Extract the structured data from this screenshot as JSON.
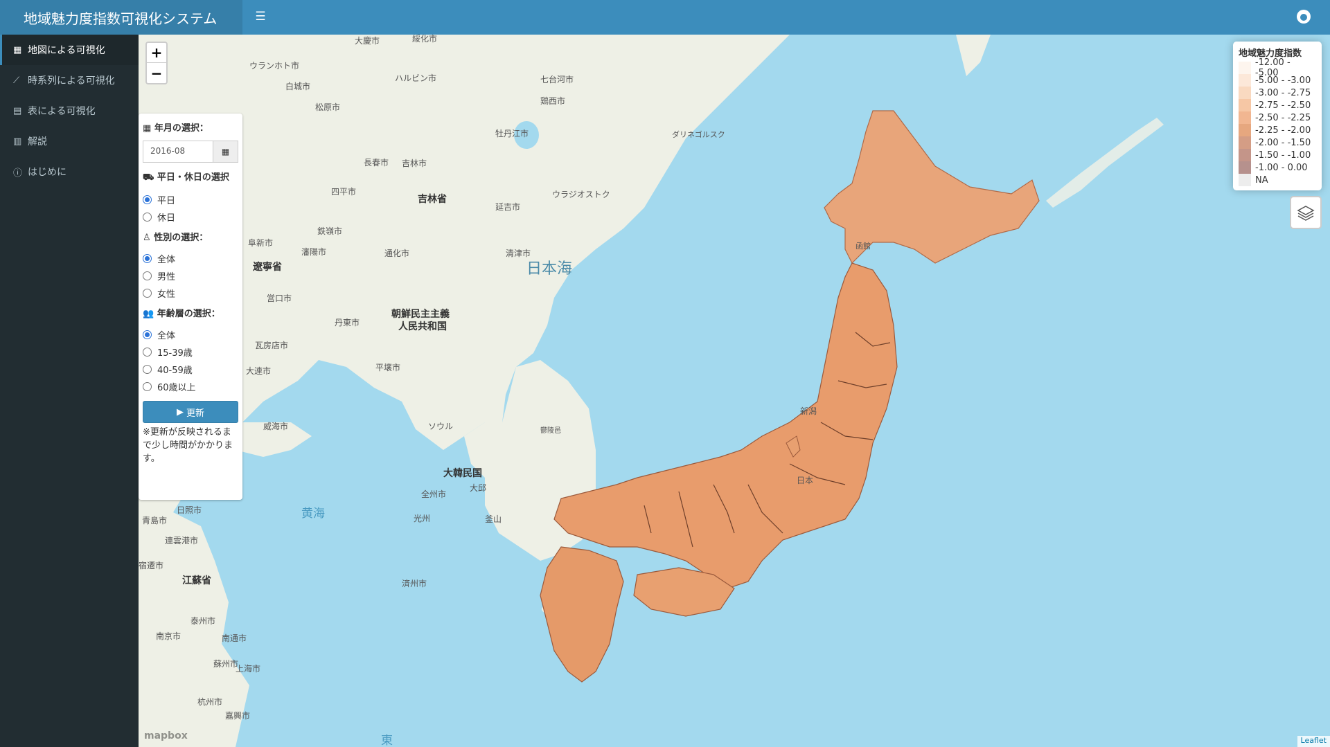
{
  "header": {
    "title": "地域魅力度指数可視化システム"
  },
  "sidebar": {
    "items": [
      {
        "label": "地図による可視化",
        "icon": "map-icon",
        "active": true
      },
      {
        "label": "時系列による可視化",
        "icon": "line-chart-icon",
        "active": false
      },
      {
        "label": "表による可視化",
        "icon": "table-icon",
        "active": false
      },
      {
        "label": "解説",
        "icon": "book-icon",
        "active": false
      },
      {
        "label": "はじめに",
        "icon": "info-icon",
        "active": false
      }
    ]
  },
  "zoom": {
    "in": "+",
    "out": "−"
  },
  "panel": {
    "date_label": "年月の選択：",
    "date_value": "2016-08",
    "daytype_label": "平日・休日の選択",
    "daytype_options": [
      "平日",
      "休日"
    ],
    "gender_label": "性別の選択：",
    "gender_options": [
      "全体",
      "男性",
      "女性"
    ],
    "age_label": "年齢層の選択：",
    "age_options": [
      "全体",
      "15-39歳",
      "40-59歳",
      "60歳以上"
    ],
    "update_button": "更新",
    "note": "※更新が反映されるまで少し時間がかかります。"
  },
  "legend": {
    "title": "地域魅力度指数",
    "entries": [
      {
        "label": "-12.00 - -5.00",
        "color": "#fdf2ea"
      },
      {
        "label": "-5.00 - -3.00",
        "color": "#fbe2d0"
      },
      {
        "label": "-3.00 - -2.75",
        "color": "#f8cfb0"
      },
      {
        "label": "-2.75 - -2.50",
        "color": "#f4b98e"
      },
      {
        "label": "-2.50 - -2.25",
        "color": "#eea475"
      },
      {
        "label": "-2.25 - -2.00",
        "color": "#e0915f"
      },
      {
        "label": "-2.00 - -1.50",
        "color": "#c98466"
      },
      {
        "label": "-1.50 - -1.00",
        "color": "#b57b6c"
      },
      {
        "label": "-1.00 - 0.00",
        "color": "#a47670"
      },
      {
        "label": "NA",
        "color": "#e9e9e9"
      }
    ]
  },
  "map": {
    "labels": {
      "sea_of_japan": "日本海",
      "yellow_sea": "黄海",
      "east": "東",
      "korea": "大韓民国",
      "north_korea_1": "朝鮮民主主義",
      "north_korea_2": "人民共和国",
      "jilin": "吉林省",
      "liaoning": "遼寧省",
      "jiangsu": "江蘇省",
      "japan": "日本",
      "harbin": "ハルビン市",
      "daqing": "大慶市",
      "suihua": "綏化市",
      "qitaihe": "七台河市",
      "jixi": "鶏西市",
      "mudanjiang": "牡丹江市",
      "changchun": "長春市",
      "jilin_city": "吉林市",
      "shenyang": "瀋陽市",
      "dalian": "大連市",
      "dandong": "丹東市",
      "pyongyang": "平壌市",
      "seoul": "ソウル",
      "busan": "釜山",
      "daegu": "大邱",
      "gwangju": "光州",
      "jeonju": "全州市",
      "jeju": "済州市",
      "weihai": "威海市",
      "qingdao": "青島市",
      "rizhao": "日照市",
      "lianyungang": "連雲港市",
      "suqian": "宿遷市",
      "taizhou": "泰州市",
      "nanjing": "南京市",
      "nantong": "南通市",
      "suzhou": "蘇州市",
      "shanghai": "上海市",
      "hangzhou": "杭州市",
      "jiaxing": "嘉興市",
      "vladivostok": "ウラジオストク",
      "dalnegorsk": "ダリネゴルスク",
      "yanji": "延吉市",
      "qingjin": "清津市",
      "siping": "四平市",
      "tonghua": "通化市",
      "ulanhot": "ウランホト市",
      "baicheng": "白城市",
      "songyuan": "松原市",
      "tieling": "鉄嶺市",
      "fuxin": "阜新市",
      "yingkou": "営口市",
      "wafangdian": "瓦房店市",
      "ulleungdo": "鬱陵邑",
      "niigata": "新潟",
      "hakodate": "函館",
      "mapbox": "mapbox",
      "leaflet": "Leaflet"
    }
  }
}
